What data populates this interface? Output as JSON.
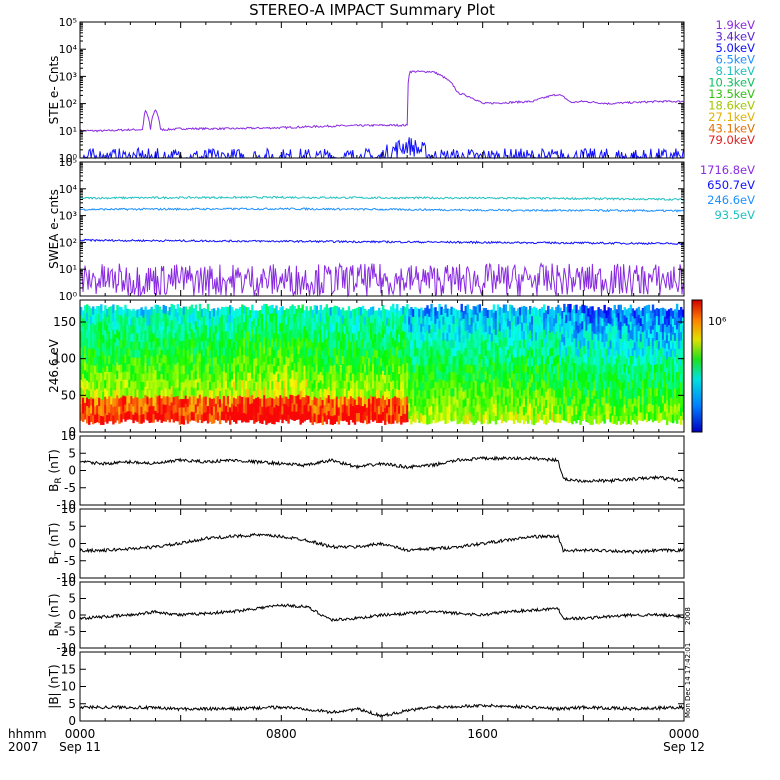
{
  "title": "STEREO-A IMPACT Summary Plot",
  "colors": {
    "ste_low": "#8a2be2",
    "ste_high": "#1010ff",
    "swea_1716": "#8a2be2",
    "swea_650": "#1010ff",
    "swea_246": "#1e90ff",
    "swea_93": "#20c0c0",
    "mag": "#000000"
  },
  "chart_data": [
    {
      "type": "line",
      "id": "ste",
      "ylabel": "STE e- Cnts",
      "yscale": "log",
      "ylim": [
        1,
        100000
      ],
      "ytick_labels": [
        "10⁰",
        "10¹",
        "10²",
        "10³",
        "10⁴",
        "10⁵"
      ],
      "legend": [
        {
          "label": "1.9keV",
          "color": "#8a2be2"
        },
        {
          "label": "3.4keV",
          "color": "#5a1fd0"
        },
        {
          "label": "5.0keV",
          "color": "#1010ff"
        },
        {
          "label": "6.5keV",
          "color": "#1e90ff"
        },
        {
          "label": "8.1keV",
          "color": "#20c0c0"
        },
        {
          "label": "10.3keV",
          "color": "#10c060"
        },
        {
          "label": "13.5keV",
          "color": "#30c010"
        },
        {
          "label": "18.6keV",
          "color": "#a0c800"
        },
        {
          "label": "27.1keV",
          "color": "#e0b000"
        },
        {
          "label": "43.1keV",
          "color": "#e07000"
        },
        {
          "label": "79.0keV",
          "color": "#e02020"
        }
      ],
      "series": [
        {
          "color_key": "ste_low",
          "x": [
            0,
            1,
            2,
            2.5,
            2.6,
            2.8,
            3,
            3.2,
            3.4,
            4,
            6,
            8,
            10,
            12,
            12.5,
            13,
            13.1,
            13.5,
            14,
            15,
            16,
            17,
            18,
            19,
            19.5,
            20,
            21,
            22,
            23,
            24
          ],
          "y": [
            10,
            10,
            11,
            11,
            55,
            11,
            60,
            11,
            11,
            12,
            12,
            13,
            15,
            16,
            16,
            16,
            1500,
            1500,
            1500,
            250,
            100,
            110,
            120,
            220,
            110,
            120,
            100,
            110,
            120,
            120
          ]
        },
        {
          "color_key": "ste_high",
          "x": [
            0,
            2,
            4,
            6,
            8,
            10,
            12,
            13,
            13.5,
            14,
            16,
            18,
            20,
            22,
            24
          ],
          "y": [
            1,
            1,
            1,
            1,
            1,
            1,
            1,
            3,
            2,
            1,
            1,
            1,
            1,
            1,
            1
          ]
        }
      ]
    },
    {
      "type": "line",
      "id": "swea",
      "ylabel": "SWEA e- cnts",
      "yscale": "log",
      "ylim": [
        1,
        100000
      ],
      "ytick_labels": [
        "10⁰",
        "10¹",
        "10²",
        "10³",
        "10⁴",
        "10⁵"
      ],
      "legend": [
        {
          "label": "1716.8eV",
          "color": "#8a2be2"
        },
        {
          "label": "650.7eV",
          "color": "#1010ff"
        },
        {
          "label": "246.6eV",
          "color": "#1e90ff"
        },
        {
          "label": "93.5eV",
          "color": "#20c0c0"
        }
      ],
      "series": [
        {
          "color_key": "swea_93",
          "x": [
            0,
            4,
            8,
            12,
            16,
            20,
            24
          ],
          "y": [
            4500,
            4700,
            4800,
            4600,
            4500,
            4300,
            4000
          ]
        },
        {
          "color_key": "swea_246",
          "x": [
            0,
            4,
            8,
            12,
            16,
            20,
            24
          ],
          "y": [
            1700,
            1750,
            1800,
            1700,
            1600,
            1550,
            1500
          ]
        },
        {
          "color_key": "swea_650",
          "x": [
            0,
            4,
            8,
            12,
            16,
            20,
            24
          ],
          "y": [
            120,
            115,
            110,
            105,
            100,
            95,
            90
          ]
        },
        {
          "color_key": "swea_1716",
          "x": [
            0,
            4,
            8,
            12,
            16,
            20,
            24
          ],
          "y": [
            4,
            4,
            4,
            4,
            4,
            4,
            4
          ]
        }
      ]
    },
    {
      "type": "heatmap",
      "id": "pad",
      "ylabel": "246.6 eV",
      "ylim": [
        0,
        180
      ],
      "yticks": [
        0,
        50,
        100,
        150
      ],
      "colorbar_label": "10⁶"
    },
    {
      "type": "line",
      "id": "br",
      "ylabel": "B_R (nT)",
      "ylim": [
        -10,
        10
      ],
      "yticks": [
        -10,
        -5,
        0,
        5,
        10
      ],
      "x": [
        0,
        1,
        2,
        3,
        4,
        5,
        6,
        7,
        8,
        9,
        10,
        11,
        12,
        13,
        14,
        15,
        16,
        17,
        18,
        19,
        19.2,
        20,
        21,
        22,
        23,
        24
      ],
      "y": [
        2.5,
        2,
        2.5,
        2,
        3,
        2.5,
        3,
        2.5,
        2,
        1.5,
        3,
        1,
        2,
        1,
        1.5,
        3,
        3.5,
        3.5,
        3.5,
        3,
        -2.5,
        -3,
        -3,
        -2.5,
        -2,
        -3
      ]
    },
    {
      "type": "line",
      "id": "bt",
      "ylabel": "B_T (nT)",
      "ylim": [
        -10,
        10
      ],
      "yticks": [
        -10,
        -5,
        0,
        5,
        10
      ],
      "x": [
        0,
        1,
        2,
        3,
        4,
        5,
        6,
        7,
        8,
        9,
        10,
        11,
        12,
        13,
        14,
        15,
        16,
        17,
        18,
        19,
        19.2,
        20,
        21,
        22,
        23,
        24
      ],
      "y": [
        -2,
        -2,
        -1.5,
        -1,
        0,
        1.5,
        2,
        2.5,
        2,
        1,
        -1,
        -1,
        0,
        -2,
        -1.5,
        -1,
        0,
        1,
        2,
        2,
        -2,
        -2,
        -2,
        -2.5,
        -2,
        -2
      ]
    },
    {
      "type": "line",
      "id": "bn",
      "ylabel": "B_N (nT)",
      "ylim": [
        -10,
        10
      ],
      "yticks": [
        -10,
        -5,
        0,
        5,
        10
      ],
      "x": [
        0,
        1,
        2,
        3,
        4,
        5,
        6,
        7,
        8,
        9,
        10,
        11,
        12,
        13,
        14,
        15,
        16,
        17,
        18,
        19,
        19.2,
        20,
        21,
        22,
        23,
        24
      ],
      "y": [
        -1,
        -0.5,
        0,
        1,
        0,
        0.5,
        1,
        2,
        3,
        2.5,
        -1.5,
        -1,
        0,
        0.5,
        1,
        0.5,
        0,
        1,
        1.5,
        2,
        -1,
        -1,
        -0.5,
        0,
        0,
        -0.5
      ]
    },
    {
      "type": "line",
      "id": "bmag",
      "ylabel": "|B| (nT)",
      "ylim": [
        0,
        20
      ],
      "yticks": [
        0,
        5,
        10,
        15,
        20
      ],
      "x": [
        0,
        2,
        4,
        6,
        8,
        9,
        10,
        11,
        12,
        13,
        14,
        16,
        18,
        19,
        20,
        22,
        24
      ],
      "y": [
        4,
        4,
        3.5,
        3.5,
        4,
        3.5,
        2.5,
        3.5,
        1.5,
        3,
        4,
        4.5,
        4,
        3.5,
        4,
        3.5,
        4
      ]
    }
  ],
  "xaxis": {
    "label_top": "hhmm",
    "label_bottom": "2007",
    "ticks": [
      {
        "hour": 0,
        "top": "0000",
        "bottom": "Sep 11"
      },
      {
        "hour": 8,
        "top": "0800",
        "bottom": ""
      },
      {
        "hour": 16,
        "top": "1600",
        "bottom": ""
      },
      {
        "hour": 24,
        "top": "0000",
        "bottom": "Sep 12"
      }
    ]
  },
  "side_notes": {
    "year": "2008",
    "timestamp": "Mon Dec 14 17:42:01"
  }
}
